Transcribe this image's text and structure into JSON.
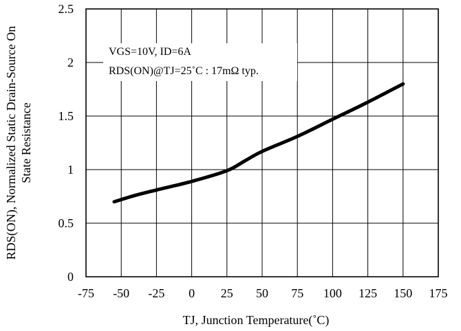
{
  "chart_data": {
    "type": "line",
    "xlabel": "TJ, Junction Temperature(˚C)",
    "ylabel_line1": "RDS(ON), Normalized Static Drain-Source On",
    "ylabel_line2": "State Resistance",
    "xlim": [
      -75,
      175
    ],
    "ylim": [
      0,
      2.5
    ],
    "x_ticks": [
      -75,
      -50,
      -25,
      0,
      25,
      50,
      75,
      100,
      125,
      150,
      175
    ],
    "y_ticks": [
      0,
      0.5,
      1,
      1.5,
      2,
      2.5
    ],
    "x_tick_labels": [
      "-75",
      "-50",
      "-25",
      "0",
      "25",
      "50",
      "75",
      "100",
      "125",
      "150",
      "175"
    ],
    "y_tick_labels": [
      "0",
      "0.5",
      "1",
      "1.5",
      "2",
      "2.5"
    ],
    "grid": true,
    "annotations": [
      "VGS=10V, ID=6A",
      "RDS(ON)@TJ=25˚C : 17mΩ typ."
    ],
    "series": [
      {
        "x": [
          -55,
          -40,
          -25,
          0,
          25,
          37.5,
          50,
          75,
          100,
          125,
          150
        ],
        "y": [
          0.7,
          0.76,
          0.81,
          0.89,
          0.99,
          1.08,
          1.17,
          1.31,
          1.47,
          1.63,
          1.8
        ],
        "color": "#000000"
      }
    ]
  }
}
